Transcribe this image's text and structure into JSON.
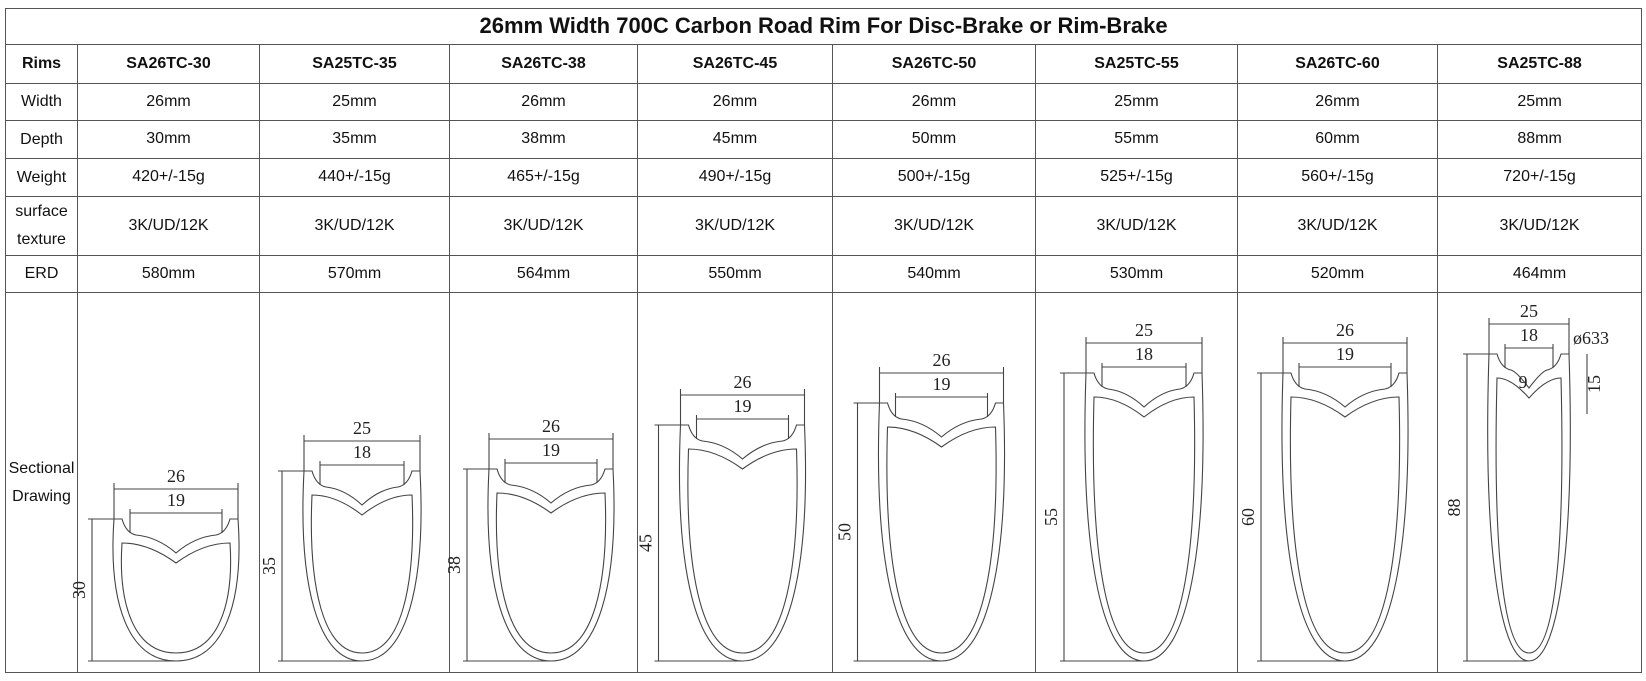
{
  "title": "26mm Width 700C Carbon Road Rim For Disc-Brake or Rim-Brake",
  "table": {
    "header": [
      "Rims",
      "SA26TC-30",
      "SA25TC-35",
      "SA26TC-38",
      "SA26TC-45",
      "SA26TC-50",
      "SA25TC-55",
      "SA26TC-60",
      "SA25TC-88"
    ],
    "rows": [
      [
        "Width",
        "26mm",
        "25mm",
        "26mm",
        "26mm",
        "26mm",
        "25mm",
        "26mm",
        "25mm"
      ],
      [
        "Depth",
        "30mm",
        "35mm",
        "38mm",
        "45mm",
        "50mm",
        "55mm",
        "60mm",
        "88mm"
      ],
      [
        "Weight",
        "420+/-15g",
        "440+/-15g",
        "465+/-15g",
        "490+/-15g",
        "500+/-15g",
        "525+/-15g",
        "560+/-15g",
        "720+/-15g"
      ],
      [
        "surface texture",
        "3K/UD/12K",
        "3K/UD/12K",
        "3K/UD/12K",
        "3K/UD/12K",
        "3K/UD/12K",
        "3K/UD/12K",
        "3K/UD/12K",
        "3K/UD/12K"
      ],
      [
        "ERD",
        "580mm",
        "570mm",
        "564mm",
        "550mm",
        "540mm",
        "530mm",
        "520mm",
        "464mm"
      ]
    ],
    "drawing_row": {
      "label": "Sectional Drawing",
      "drawings": [
        {
          "outer": "26",
          "inner": "19",
          "depth": "30"
        },
        {
          "outer": "25",
          "inner": "18",
          "depth": "35"
        },
        {
          "outer": "26",
          "inner": "19",
          "depth": "38"
        },
        {
          "outer": "26",
          "inner": "19",
          "depth": "45"
        },
        {
          "outer": "26",
          "inner": "19",
          "depth": "50"
        },
        {
          "outer": "25",
          "inner": "18",
          "depth": "55"
        },
        {
          "outer": "26",
          "inner": "19",
          "depth": "60"
        },
        {
          "outer": "25",
          "inner": "18",
          "depth": "88",
          "extras": [
            "9",
            "15",
            "ø633"
          ]
        }
      ]
    }
  }
}
